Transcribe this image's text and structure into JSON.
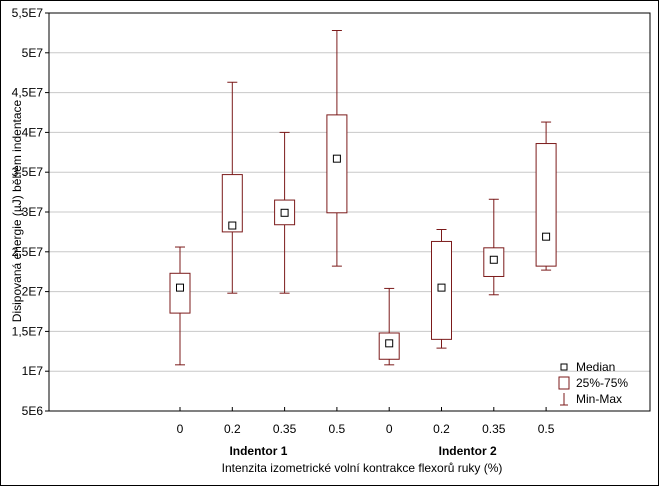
{
  "chart_data": {
    "type": "boxplot",
    "title": "",
    "xlabel": "Intenzita izometrické volní kontrakce flexorů ruky (%)",
    "ylabel": "Disipovaná energie (µJ) během indentace",
    "ylim": [
      5000000,
      55000000
    ],
    "yticks": [
      {
        "value": 5000000,
        "label": "5E6"
      },
      {
        "value": 10000000,
        "label": "1E7"
      },
      {
        "value": 15000000,
        "label": "1,5E7"
      },
      {
        "value": 20000000,
        "label": "2E7"
      },
      {
        "value": 25000000,
        "label": "2,5E7"
      },
      {
        "value": 30000000,
        "label": "3E7"
      },
      {
        "value": 35000000,
        "label": "3,5E7"
      },
      {
        "value": 40000000,
        "label": "4E7"
      },
      {
        "value": 45000000,
        "label": "4,5E7"
      },
      {
        "value": 50000000,
        "label": "5E7"
      },
      {
        "value": 55000000,
        "label": "5,5E7"
      }
    ],
    "grid": true,
    "groups": [
      {
        "name": "Indentor 1",
        "categories": [
          "0",
          "0.2",
          "0.35",
          "0.5"
        ]
      },
      {
        "name": "Indentor 2",
        "categories": [
          "0",
          "0.2",
          "0.35",
          "0.5"
        ]
      }
    ],
    "boxes": [
      {
        "group": "Indentor 1",
        "x": "0",
        "min": 10800000,
        "q1": 17300000,
        "median": 20500000,
        "q3": 22300000,
        "max": 25600000
      },
      {
        "group": "Indentor 1",
        "x": "0.2",
        "min": 19800000,
        "q1": 27500000,
        "median": 28300000,
        "q3": 34700000,
        "max": 46300000
      },
      {
        "group": "Indentor 1",
        "x": "0.35",
        "min": 19800000,
        "q1": 28400000,
        "median": 29900000,
        "q3": 31500000,
        "max": 40000000
      },
      {
        "group": "Indentor 1",
        "x": "0.5",
        "min": 23200000,
        "q1": 29900000,
        "median": 36700000,
        "q3": 42200000,
        "max": 52800000
      },
      {
        "group": "Indentor 2",
        "x": "0",
        "min": 10800000,
        "q1": 11500000,
        "median": 13500000,
        "q3": 14800000,
        "max": 20400000
      },
      {
        "group": "Indentor 2",
        "x": "0.2",
        "min": 12900000,
        "q1": 14000000,
        "median": 20500000,
        "q3": 26300000,
        "max": 27800000
      },
      {
        "group": "Indentor 2",
        "x": "0.35",
        "min": 19600000,
        "q1": 21900000,
        "median": 24000000,
        "q3": 25500000,
        "max": 31600000
      },
      {
        "group": "Indentor 2",
        "x": "0.5",
        "min": 22700000,
        "q1": 23200000,
        "median": 26900000,
        "q3": 38600000,
        "max": 41300000
      }
    ],
    "legend": {
      "position": "bottom-right",
      "items": [
        {
          "symbol": "median",
          "label": "Median"
        },
        {
          "symbol": "box",
          "label": "25%-75%"
        },
        {
          "symbol": "whisker",
          "label": "Min-Max"
        }
      ]
    },
    "colors": {
      "box": "#7b1a1a",
      "grid": "#c8c8c8",
      "axis": "#000000"
    }
  }
}
